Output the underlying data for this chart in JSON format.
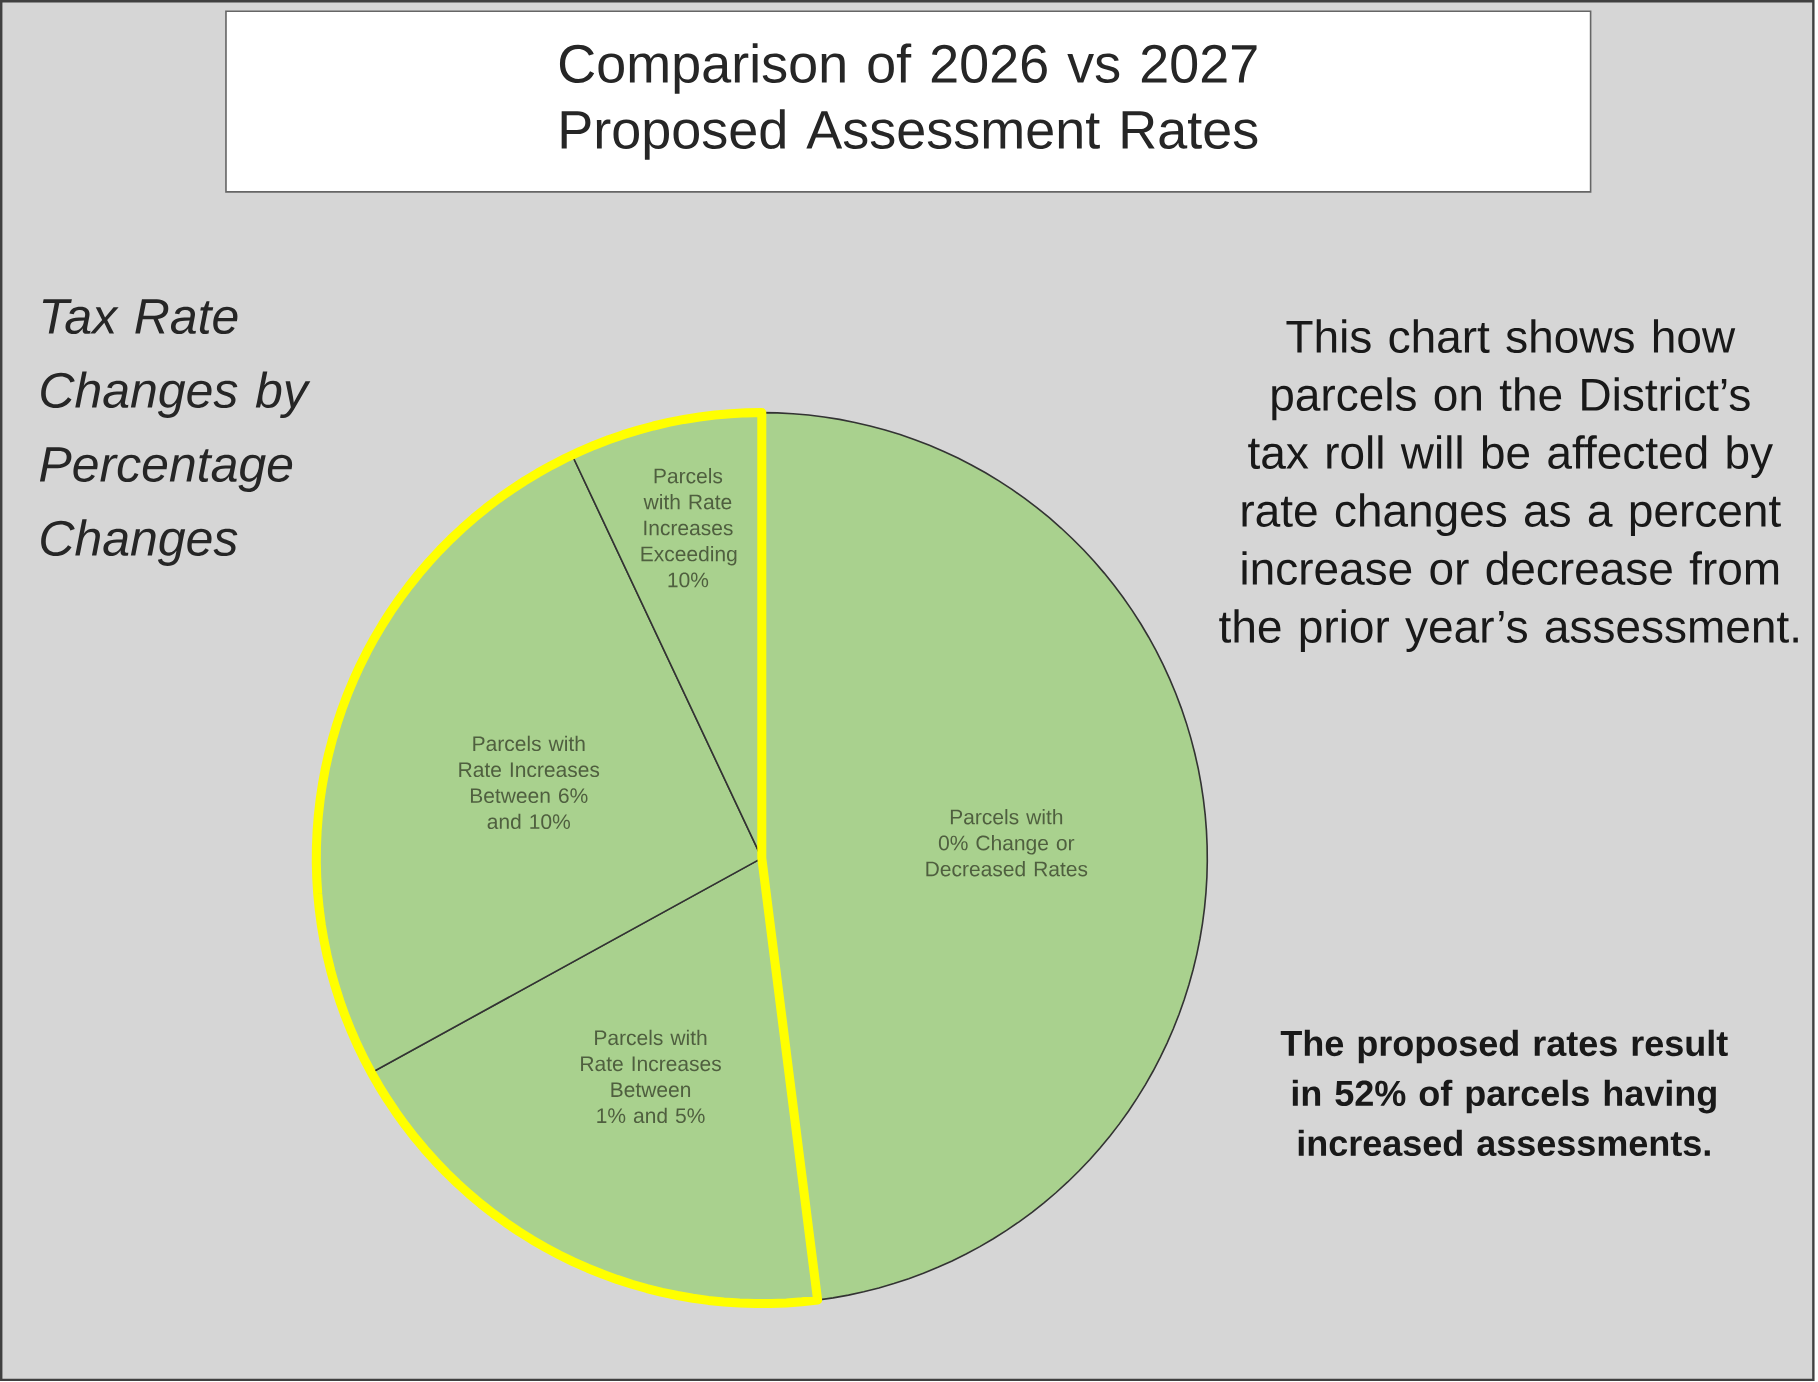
{
  "chart_data": {
    "type": "pie",
    "title": "Comparison of 2026 vs 2027 Proposed Assessment Rates",
    "subtitle": "Tax Rate Changes by Percentage Changes",
    "categories": [
      "Parcels with 0% Change or Decreased Rates",
      "Parcels with Rate Increases Between 1% and 5%",
      "Parcels with Rate Increases Between 6% and 10%",
      "Parcels with Rate Increases Exceeding 10%"
    ],
    "values": [
      48,
      19,
      26,
      7
    ],
    "colors": [
      "#a9d18e",
      "#a9d18e",
      "#a9d18e",
      "#a9d18e"
    ],
    "annotations": [
      "This chart shows how parcels on the District’s tax roll will be affected by rate changes as a percent increase or decrease from the prior year’s assessment.",
      "The proposed rates result in 52% of parcels having increased assessments."
    ]
  }
}
